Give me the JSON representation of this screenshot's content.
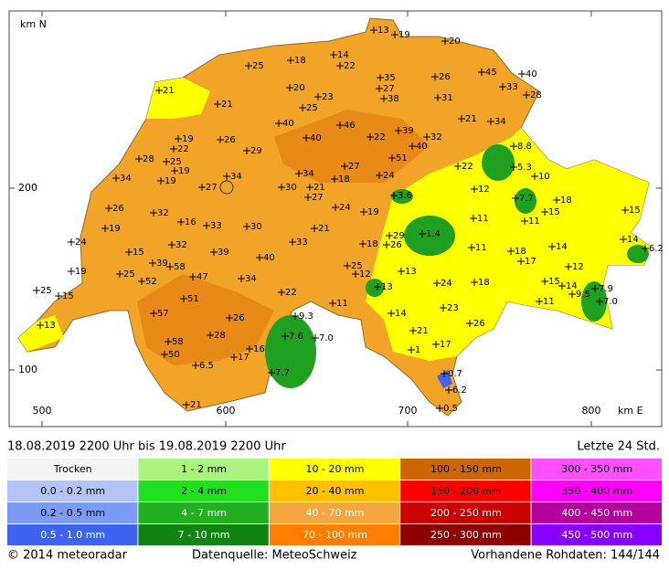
{
  "map": {
    "y_axis_label": "km N",
    "x_axis_label": "km E",
    "xticks": [
      "500",
      "600",
      "700",
      "800"
    ],
    "yticks": [
      "200",
      "100"
    ],
    "stations": [
      "13",
      "19",
      "20",
      "14",
      "18",
      "22",
      "25",
      "45",
      "40",
      "35",
      "26",
      "33",
      "27",
      "28",
      "21",
      "20",
      "23",
      "38",
      "31",
      "21",
      "25",
      "21",
      "34",
      "40",
      "46",
      "19",
      "26",
      "40",
      "22",
      "39",
      "32",
      "22",
      "29",
      "40",
      "51",
      "28",
      "25",
      "19",
      "27",
      "22",
      "34",
      "34",
      "34",
      "24",
      "19",
      "27",
      "18",
      "30",
      "21",
      "12",
      "10",
      "27",
      "26",
      "24",
      "3.6",
      "32",
      "19",
      "7.7",
      "18",
      "16",
      "33",
      "11",
      "11",
      "15",
      "15",
      "19",
      "30",
      "21",
      "24",
      "1.4",
      "29",
      "26",
      "32",
      "39",
      "33",
      "15",
      "18",
      "11",
      "18",
      "14",
      "14",
      "6.2",
      "39",
      "40",
      "19",
      "58",
      "25",
      "25",
      "13",
      "17",
      "12",
      "52",
      "47",
      "34",
      "12",
      "25",
      "15",
      "13",
      "24",
      "18",
      "15",
      "14",
      "9.5",
      "7.9",
      "51",
      "22",
      "11",
      "7.0",
      "11",
      "23",
      "57",
      "14",
      "9.3",
      "26",
      "13",
      "26",
      "21",
      "7.6",
      "7.0",
      "28",
      "58",
      "17",
      "1",
      "16",
      "50",
      "17",
      "6.5",
      "0.7",
      "7.7",
      "6.2",
      "0.5",
      "21",
      "8.8",
      "5.3"
    ]
  },
  "header": {
    "period": "18.08.2019  2200  Uhr    bis    19.08.2019  2200  Uhr",
    "window": "Letzte 24 Std."
  },
  "legend": [
    {
      "label": "Trocken",
      "color": "#f4f4f4",
      "text_color": "#000000"
    },
    {
      "label": "0.0 - 0.2 mm",
      "color": "#b4c4f4",
      "text_color": "#000000"
    },
    {
      "label": "0.2 - 0.5 mm",
      "color": "#7c9cf4",
      "text_color": "#000000"
    },
    {
      "label": "0.5 - 1.0 mm",
      "color": "#3c64f0",
      "text_color": "#ffffff"
    },
    {
      "label": "1 - 2 mm",
      "color": "#a8f47c",
      "text_color": "#000000"
    },
    {
      "label": "2 - 4 mm",
      "color": "#20e020",
      "text_color": "#000000"
    },
    {
      "label": "4 - 7 mm",
      "color": "#20b020",
      "text_color": "#ffffff"
    },
    {
      "label": "7 - 10 mm",
      "color": "#108410",
      "text_color": "#ffffff"
    },
    {
      "label": "10 - 20 mm",
      "color": "#ffff00",
      "text_color": "#000000"
    },
    {
      "label": "20 - 40 mm",
      "color": "#ffc000",
      "text_color": "#000000"
    },
    {
      "label": "40 - 70 mm",
      "color": "#f4a640",
      "text_color": "#ffffff"
    },
    {
      "label": "70 - 100 mm",
      "color": "#ff8000",
      "text_color": "#ffffff"
    },
    {
      "label": "100 - 150 mm",
      "color": "#cc6600",
      "text_color": "#000000"
    },
    {
      "label": "150 - 200 mm",
      "color": "#ff0000",
      "text_color": "#000000"
    },
    {
      "label": "200 - 250 mm",
      "color": "#c80000",
      "text_color": "#ffffff"
    },
    {
      "label": "250 - 300 mm",
      "color": "#8c0000",
      "text_color": "#ffffff"
    },
    {
      "label": "300 - 350 mm",
      "color": "#ff50ff",
      "text_color": "#000000"
    },
    {
      "label": "350 - 400 mm",
      "color": "#ff00ff",
      "text_color": "#000000"
    },
    {
      "label": "400 - 450 mm",
      "color": "#b4009c",
      "text_color": "#ffffff"
    },
    {
      "label": "450 - 500 mm",
      "color": "#8800ff",
      "text_color": "#ffffff"
    }
  ],
  "footer": {
    "copyright": "© 2014  meteoradar",
    "source": "Datenquelle: MeteoSchweiz",
    "raw": "Vorhandene Rohdaten: 144/144"
  }
}
